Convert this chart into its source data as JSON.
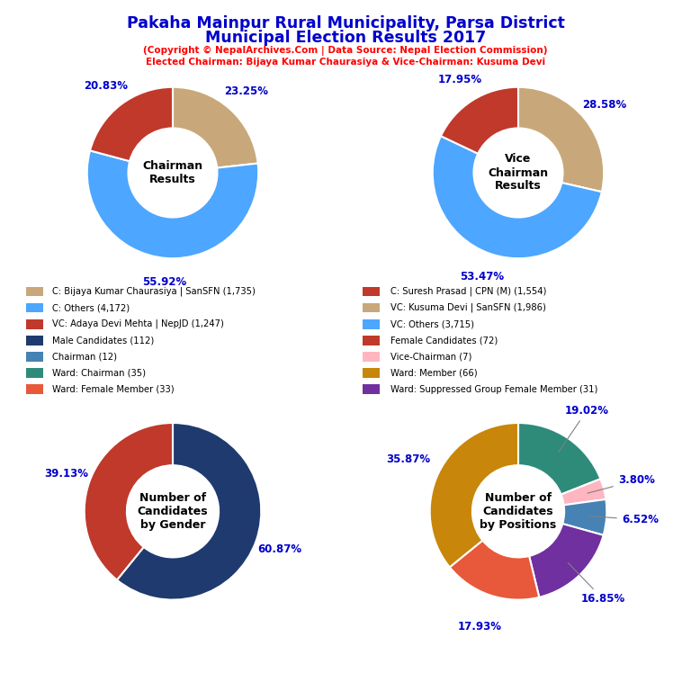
{
  "title_line1": "Pakaha Mainpur Rural Municipality, Parsa District",
  "title_line2": "Municipal Election Results 2017",
  "subtitle1": "(Copyright © NepalArchives.Com | Data Source: Nepal Election Commission)",
  "subtitle2": "Elected Chairman: Bijaya Kumar Chaurasiya & Vice-Chairman: Kusuma Devi",
  "title_color": "#0000CD",
  "subtitle_color": "#FF0000",
  "chairman_slices": [
    23.25,
    55.92,
    20.83
  ],
  "chairman_colors": [
    "#C8A87A",
    "#4DA6FF",
    "#C0392B"
  ],
  "chairman_labels": [
    "23.25%",
    "55.92%",
    "20.83%"
  ],
  "chairman_center_text": "Chairman\nResults",
  "vc_slices": [
    28.58,
    53.47,
    17.95
  ],
  "vc_colors": [
    "#C8A87A",
    "#4DA6FF",
    "#C0392B"
  ],
  "vc_labels": [
    "28.58%",
    "53.47%",
    "17.95%"
  ],
  "vc_center_text": "Vice\nChairman\nResults",
  "gender_slices": [
    60.87,
    39.13
  ],
  "gender_colors": [
    "#1F3A6E",
    "#C0392B"
  ],
  "gender_labels": [
    "60.87%",
    "39.13%"
  ],
  "gender_center_text": "Number of\nCandidates\nby Gender",
  "positions_slices": [
    19.02,
    3.8,
    6.52,
    16.85,
    17.93,
    35.87
  ],
  "positions_colors": [
    "#2E8B7A",
    "#FFB6C1",
    "#4682B4",
    "#7030A0",
    "#E8583A",
    "#C8860A"
  ],
  "positions_labels": [
    "19.02%",
    "3.80%",
    "6.52%",
    "16.85%",
    "17.93%",
    "35.87%"
  ],
  "positions_center_text": "Number of\nCandidates\nby Positions",
  "legend_items_left": [
    {
      "label": "C: Bijaya Kumar Chaurasiya | SanSFN (1,735)",
      "color": "#C8A87A"
    },
    {
      "label": "C: Others (4,172)",
      "color": "#4DA6FF"
    },
    {
      "label": "VC: Adaya Devi Mehta | NepJD (1,247)",
      "color": "#C0392B"
    },
    {
      "label": "Male Candidates (112)",
      "color": "#1F3A6E"
    },
    {
      "label": "Chairman (12)",
      "color": "#4682B4"
    },
    {
      "label": "Ward: Chairman (35)",
      "color": "#2E8B7A"
    },
    {
      "label": "Ward: Female Member (33)",
      "color": "#E8583A"
    }
  ],
  "legend_items_right": [
    {
      "label": "C: Suresh Prasad | CPN (M) (1,554)",
      "color": "#C0392B"
    },
    {
      "label": "VC: Kusuma Devi | SanSFN (1,986)",
      "color": "#C8A87A"
    },
    {
      "label": "VC: Others (3,715)",
      "color": "#4DA6FF"
    },
    {
      "label": "Female Candidates (72)",
      "color": "#C0392B"
    },
    {
      "label": "Vice-Chairman (7)",
      "color": "#FFB6C1"
    },
    {
      "label": "Ward: Member (66)",
      "color": "#C8860A"
    },
    {
      "label": "Ward: Suppressed Group Female Member (31)",
      "color": "#7030A0"
    }
  ]
}
